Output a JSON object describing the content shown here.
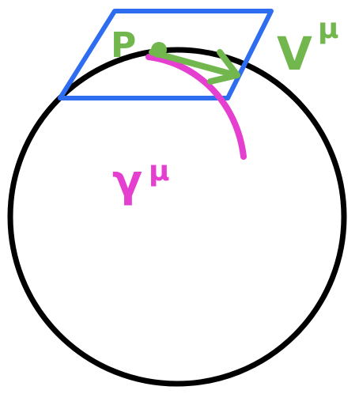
{
  "diagram": {
    "point": {
      "label": "P"
    },
    "vector": {
      "label": "V",
      "index": "μ"
    },
    "curve": {
      "label": "γ",
      "index": "μ"
    }
  }
}
